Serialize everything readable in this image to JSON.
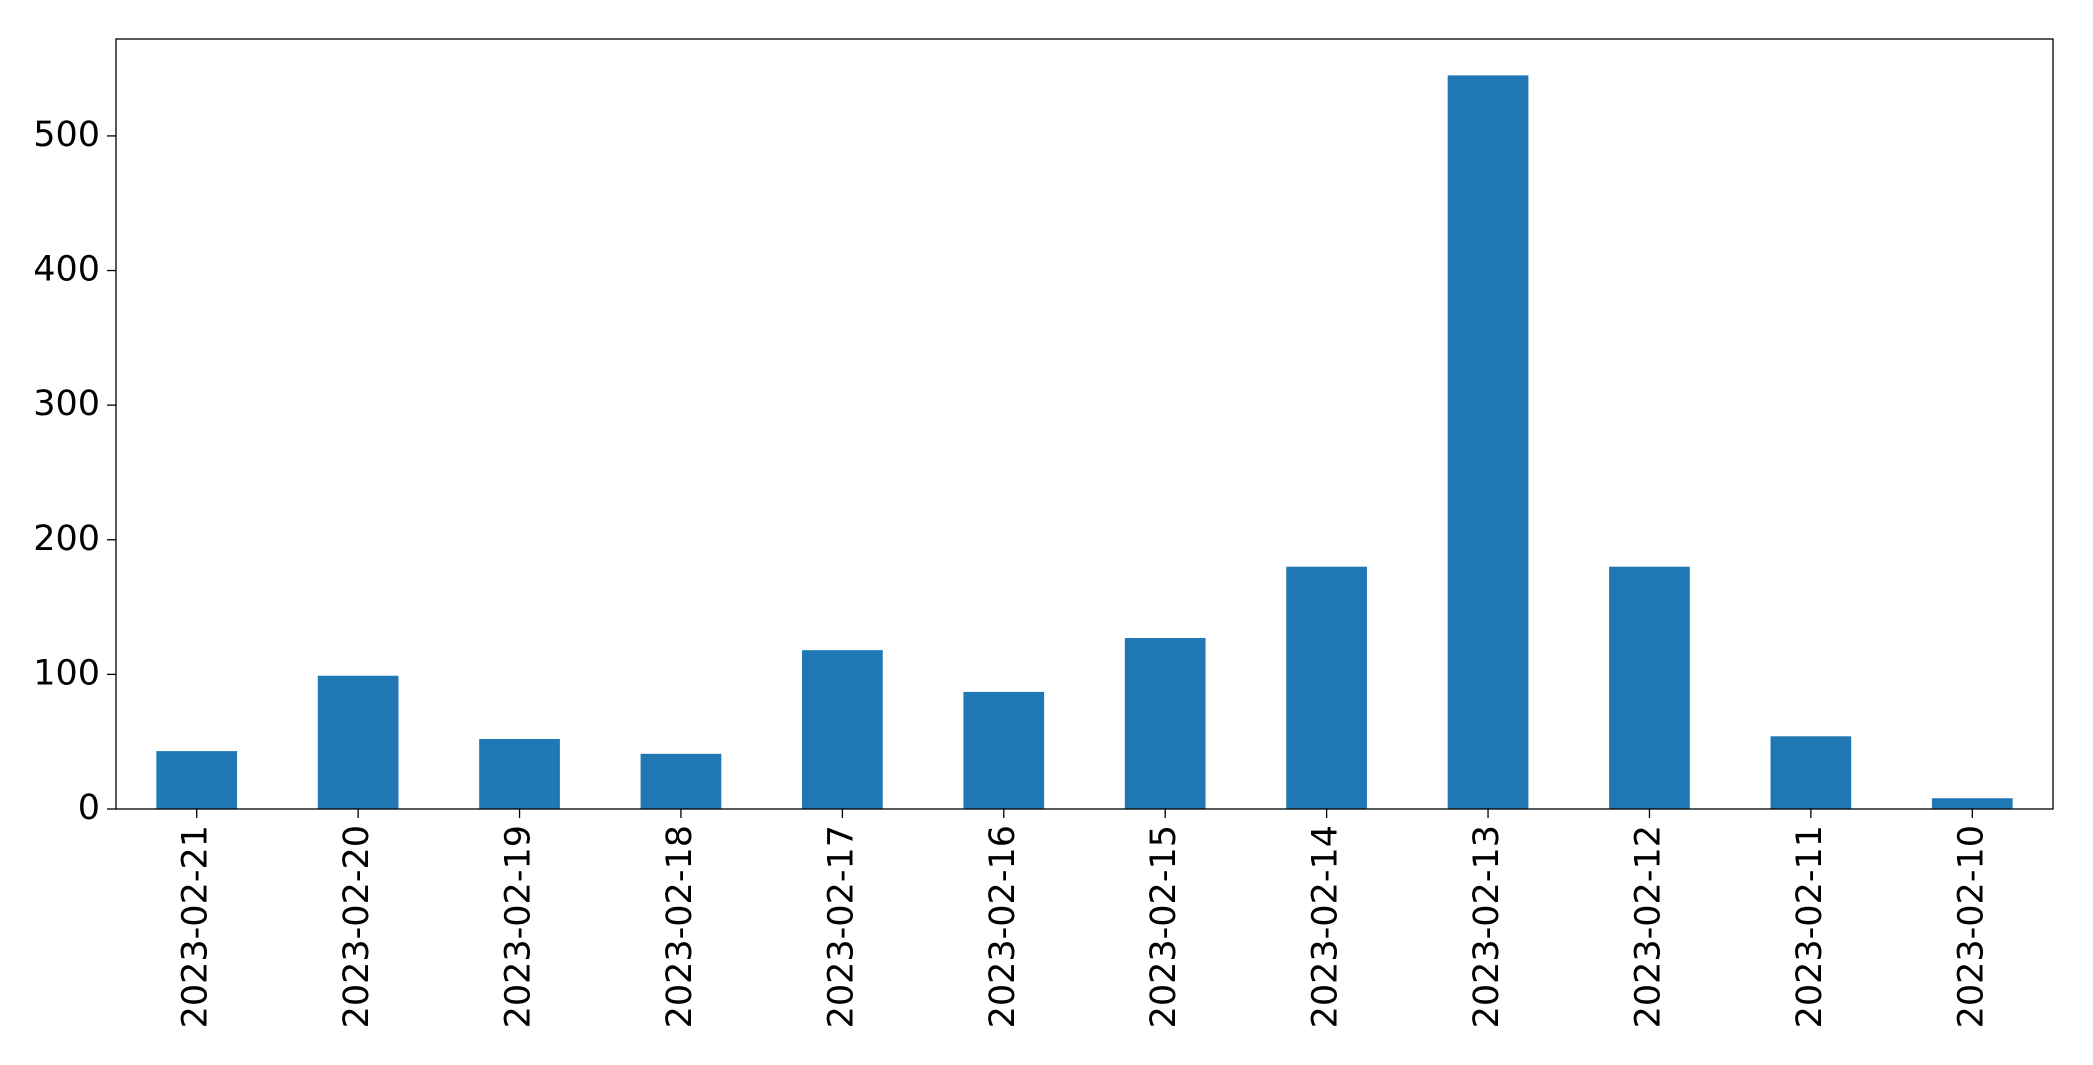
{
  "chart_data": {
    "type": "bar",
    "categories": [
      "2023-02-21",
      "2023-02-20",
      "2023-02-19",
      "2023-02-18",
      "2023-02-17",
      "2023-02-16",
      "2023-02-15",
      "2023-02-14",
      "2023-02-13",
      "2023-02-12",
      "2023-02-11",
      "2023-02-10"
    ],
    "values": [
      43,
      99,
      52,
      41,
      118,
      87,
      127,
      180,
      545,
      180,
      54,
      8
    ],
    "color": "#1f77b4",
    "ylim": [
      0,
      572
    ],
    "yticks": [
      0,
      100,
      200,
      300,
      400,
      500
    ],
    "grid": false
  }
}
